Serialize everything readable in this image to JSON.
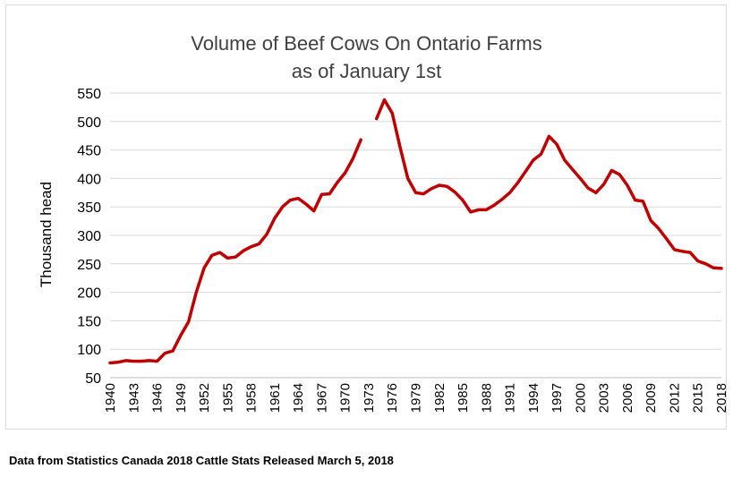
{
  "chart_data": {
    "type": "line",
    "title_lines": [
      "Volume of Beef Cows On Ontario Farms",
      "as of January 1st"
    ],
    "xlabel": "",
    "ylabel": "Thousand head",
    "ylim": [
      50,
      550
    ],
    "yticks": [
      50,
      100,
      150,
      200,
      250,
      300,
      350,
      400,
      450,
      500,
      550
    ],
    "xlim": [
      1940,
      2018
    ],
    "xticks": [
      1940,
      1943,
      1946,
      1949,
      1952,
      1955,
      1958,
      1961,
      1964,
      1967,
      1970,
      1973,
      1976,
      1979,
      1982,
      1985,
      1988,
      1991,
      1994,
      1997,
      2000,
      2003,
      2006,
      2009,
      2012,
      2015,
      2018
    ],
    "grid": true,
    "line_color": "#c00000",
    "series": [
      {
        "segments": [
          [
            [
              1940,
              76
            ],
            [
              1941,
              77
            ],
            [
              1942,
              80
            ],
            [
              1943,
              79
            ],
            [
              1944,
              79
            ],
            [
              1945,
              80
            ],
            [
              1946,
              79
            ],
            [
              1947,
              93
            ],
            [
              1948,
              97
            ],
            [
              1949,
              124
            ],
            [
              1950,
              148
            ],
            [
              1951,
              200
            ],
            [
              1952,
              243
            ],
            [
              1953,
              265
            ],
            [
              1954,
              270
            ],
            [
              1955,
              260
            ],
            [
              1956,
              262
            ],
            [
              1957,
              273
            ],
            [
              1958,
              280
            ],
            [
              1959,
              285
            ],
            [
              1960,
              302
            ],
            [
              1961,
              330
            ],
            [
              1962,
              350
            ],
            [
              1963,
              362
            ],
            [
              1964,
              365
            ],
            [
              1965,
              355
            ],
            [
              1966,
              343
            ],
            [
              1967,
              372
            ],
            [
              1968,
              373
            ],
            [
              1969,
              393
            ],
            [
              1970,
              410
            ],
            [
              1971,
              435
            ],
            [
              1972,
              468
            ]
          ],
          [
            [
              1974,
              505
            ],
            [
              1975,
              538
            ],
            [
              1976,
              515
            ],
            [
              1977,
              455
            ],
            [
              1978,
              400
            ],
            [
              1979,
              375
            ],
            [
              1980,
              373
            ],
            [
              1981,
              382
            ],
            [
              1982,
              388
            ],
            [
              1983,
              386
            ],
            [
              1984,
              376
            ],
            [
              1985,
              362
            ],
            [
              1986,
              341
            ],
            [
              1987,
              345
            ],
            [
              1988,
              345
            ],
            [
              1989,
              353
            ],
            [
              1990,
              363
            ],
            [
              1991,
              375
            ],
            [
              1992,
              392
            ],
            [
              1993,
              412
            ],
            [
              1994,
              432
            ],
            [
              1995,
              443
            ],
            [
              1996,
              474
            ],
            [
              1997,
              460
            ],
            [
              1998,
              432
            ],
            [
              1999,
              416
            ],
            [
              2000,
              400
            ],
            [
              2001,
              383
            ],
            [
              2002,
              375
            ],
            [
              2003,
              390
            ],
            [
              2004,
              414
            ],
            [
              2005,
              407
            ],
            [
              2006,
              388
            ],
            [
              2007,
              362
            ],
            [
              2008,
              360
            ],
            [
              2009,
              326
            ],
            [
              2010,
              312
            ],
            [
              2011,
              294
            ],
            [
              2012,
              275
            ],
            [
              2013,
              272
            ],
            [
              2014,
              270
            ],
            [
              2015,
              255
            ],
            [
              2016,
              250
            ],
            [
              2017,
              243
            ],
            [
              2018,
              242
            ]
          ]
        ]
      }
    ]
  },
  "source_note": "Data from Statistics Canada 2018 Cattle Stats  Released March 5, 2018"
}
